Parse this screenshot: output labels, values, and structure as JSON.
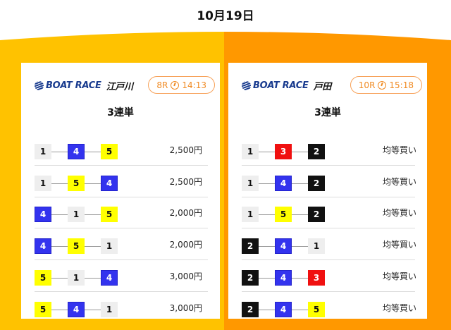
{
  "date": "10月19日",
  "colors": {
    "left_bg": "#FFC200",
    "right_bg": "#FF9800",
    "badge": "#f08a22"
  },
  "cards": [
    {
      "logo": "BOAT RACE",
      "venue": "江戸川",
      "race": "8R",
      "time": "14:13",
      "bet_type": "3連単",
      "rows": [
        {
          "combo": [
            "1",
            "4",
            "5"
          ],
          "value": "2,500円"
        },
        {
          "combo": [
            "1",
            "5",
            "4"
          ],
          "value": "2,500円"
        },
        {
          "combo": [
            "4",
            "1",
            "5"
          ],
          "value": "2,000円"
        },
        {
          "combo": [
            "4",
            "5",
            "1"
          ],
          "value": "2,000円"
        },
        {
          "combo": [
            "5",
            "1",
            "4"
          ],
          "value": "3,000円"
        },
        {
          "combo": [
            "5",
            "4",
            "1"
          ],
          "value": "3,000円"
        }
      ]
    },
    {
      "logo": "BOAT RACE",
      "venue": "戸田",
      "race": "10R",
      "time": "15:18",
      "bet_type": "3連単",
      "rows": [
        {
          "combo": [
            "1",
            "3",
            "2"
          ],
          "value": "均等買い"
        },
        {
          "combo": [
            "1",
            "4",
            "2"
          ],
          "value": "均等買い"
        },
        {
          "combo": [
            "1",
            "5",
            "2"
          ],
          "value": "均等買い"
        },
        {
          "combo": [
            "2",
            "4",
            "1"
          ],
          "value": "均等買い"
        },
        {
          "combo": [
            "2",
            "4",
            "3"
          ],
          "value": "均等買い"
        },
        {
          "combo": [
            "2",
            "4",
            "5"
          ],
          "value": "均等買い"
        }
      ]
    }
  ]
}
